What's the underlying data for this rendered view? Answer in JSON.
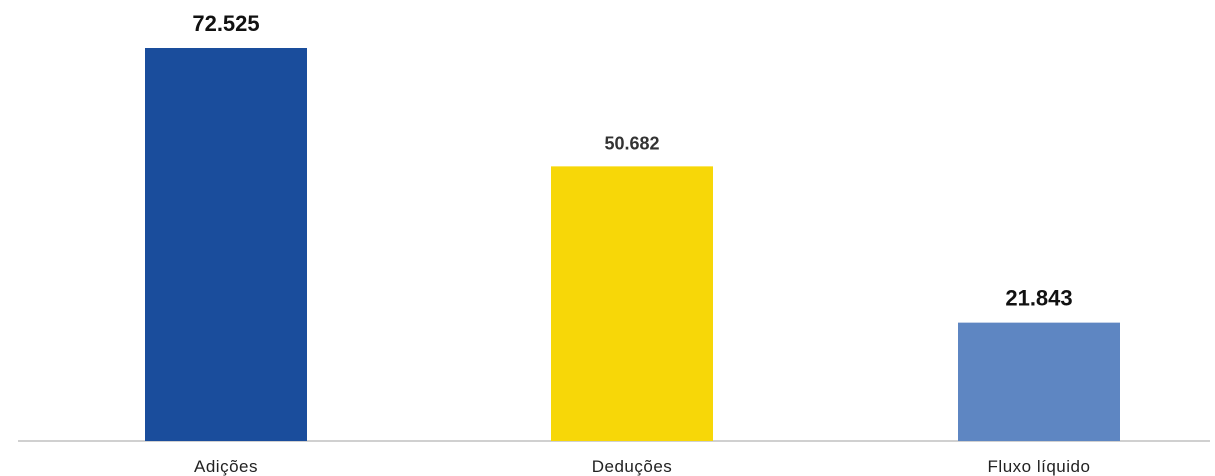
{
  "chart_data": {
    "type": "bar",
    "title": "",
    "xlabel": "",
    "ylabel": "",
    "categories": [
      "Adições",
      "Deduções",
      "Fluxo líquido"
    ],
    "values": [
      72525,
      50682,
      21843
    ],
    "value_labels": [
      "72.525",
      "50.682",
      "21.843"
    ],
    "colors": [
      "#1a4d9c",
      "#f7d708",
      "#5e86c2"
    ],
    "label_emphasis": [
      "bold",
      "muted",
      "bold"
    ],
    "ylim": [
      0,
      72525
    ],
    "grid": false,
    "legend": "none"
  }
}
